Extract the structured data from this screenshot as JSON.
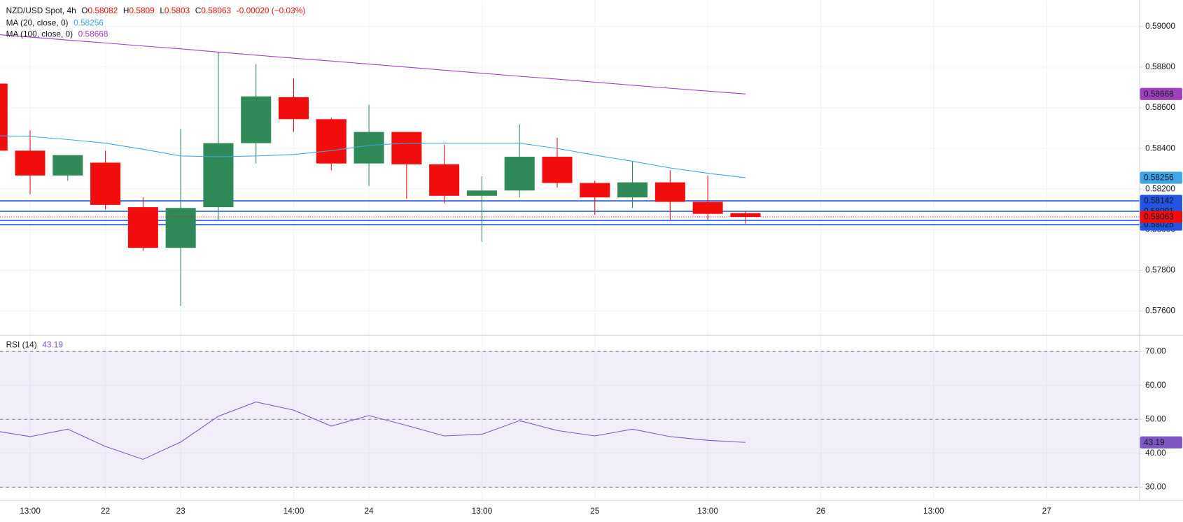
{
  "chart_data": [
    {
      "type": "candlestick",
      "title": "NZD/USD Spot, 4h",
      "ohlc_labels": [
        "O",
        "H",
        "L",
        "C"
      ],
      "change": "-0.00020 (−0.03%)",
      "x": [
        0,
        1,
        2,
        3,
        4,
        5,
        6,
        7,
        8,
        9,
        10,
        11,
        12,
        13,
        14,
        15,
        16,
        17,
        18,
        19,
        20
      ],
      "xlim": [
        0.2,
        30.46
      ],
      "xticks": [
        {
          "value": 1,
          "label": "13:00"
        },
        {
          "value": 3,
          "label": "22"
        },
        {
          "value": 5,
          "label": "23"
        },
        {
          "value": 8,
          "label": "14:00"
        },
        {
          "value": 10,
          "label": "24"
        },
        {
          "value": 13,
          "label": "13:00"
        },
        {
          "value": 16,
          "label": "25"
        },
        {
          "value": 19,
          "label": "13:00"
        },
        {
          "value": 22,
          "label": "26"
        },
        {
          "value": 25,
          "label": "13:00"
        },
        {
          "value": 28,
          "label": "27"
        }
      ],
      "open": [
        0.58719,
        0.58389,
        0.58267,
        0.5833,
        0.58111,
        0.57911,
        0.58111,
        0.58426,
        0.58652,
        0.58544,
        0.58326,
        0.58481,
        0.58322,
        0.58167,
        0.58193,
        0.58359,
        0.5823,
        0.58159,
        0.58233,
        0.58137,
        0.58082
      ],
      "high": [
        0.58719,
        0.58489,
        0.58367,
        0.58389,
        0.58159,
        0.58496,
        0.58874,
        0.58815,
        0.58744,
        0.58552,
        0.58615,
        0.58481,
        0.58419,
        0.58263,
        0.58519,
        0.58452,
        0.58241,
        0.58337,
        0.58293,
        0.58267,
        0.5809
      ],
      "low": [
        0.58389,
        0.58174,
        0.58241,
        0.581,
        0.57896,
        0.57626,
        0.58044,
        0.58326,
        0.58481,
        0.58293,
        0.58215,
        0.58152,
        0.5813,
        0.57941,
        0.58159,
        0.58207,
        0.58074,
        0.58107,
        0.58048,
        0.58048,
        0.5803
      ],
      "close": [
        0.58389,
        0.58267,
        0.58367,
        0.58122,
        0.57911,
        0.58107,
        0.58426,
        0.58656,
        0.58544,
        0.58326,
        0.58481,
        0.58322,
        0.58167,
        0.58193,
        0.58359,
        0.5823,
        0.58159,
        0.58233,
        0.58137,
        0.58078,
        0.58063
      ],
      "up_color": "#2f8a57",
      "down_color": "#f20d0d",
      "series": [
        {
          "name": "MA (20, close, 0)",
          "color": "#3ea6e6",
          "values": [
            0.58463,
            0.58459,
            0.58444,
            0.58426,
            0.58396,
            0.58363,
            0.58359,
            0.58363,
            0.5837,
            0.58389,
            0.58415,
            0.58426,
            0.58426,
            0.58426,
            0.58426,
            0.584,
            0.58367,
            0.58337,
            0.58304,
            0.58278,
            0.58256
          ]
        },
        {
          "name": "MA (100, close, 0)",
          "color": "#a23fbf",
          "values": [
            0.58962,
            0.58948,
            0.58933,
            0.58919,
            0.58904,
            0.5889,
            0.58874,
            0.58859,
            0.58844,
            0.5883,
            0.58815,
            0.588,
            0.58785,
            0.5877,
            0.58755,
            0.58741,
            0.58726,
            0.58711,
            0.58696,
            0.58682,
            0.58668
          ]
        }
      ],
      "hlines": [
        0.58142,
        0.58091,
        0.58046,
        0.58025
      ],
      "hline_color": "#1f55e0",
      "ylim": [
        0.5749,
        0.5913
      ],
      "yticks": [
        {
          "value": 0.576,
          "label": "0.57600"
        },
        {
          "value": 0.578,
          "label": "0.57800"
        },
        {
          "value": 0.58,
          "label": "0.58000"
        },
        {
          "value": 0.582,
          "label": "0.58200"
        },
        {
          "value": 0.584,
          "label": "0.58400"
        },
        {
          "value": 0.586,
          "label": "0.58600"
        },
        {
          "value": 0.588,
          "label": "0.58800"
        },
        {
          "value": 0.59,
          "label": "0.59000"
        }
      ],
      "grid": true
    },
    {
      "type": "line",
      "x": [
        0,
        1,
        2,
        3,
        4,
        5,
        6,
        7,
        8,
        9,
        10,
        11,
        12,
        13,
        14,
        15,
        16,
        17,
        18,
        19,
        20
      ],
      "xlim": [
        0.2,
        30.46
      ],
      "series": [
        {
          "name": "RSI (14)",
          "color": "#7e57c2",
          "values": [
            46.7,
            44.9,
            47.1,
            42,
            38.2,
            43.3,
            50.9,
            55.1,
            52.7,
            48,
            51.1,
            48.2,
            45.1,
            45.6,
            49.6,
            46.7,
            45.1,
            47.1,
            44.9,
            43.8,
            43.19
          ]
        }
      ],
      "band": [
        30,
        70
      ],
      "midline": 50,
      "ylim": [
        26.2,
        74.2
      ],
      "yticks": [
        {
          "value": 30,
          "label": "30.00"
        },
        {
          "value": 40,
          "label": "40.00"
        },
        {
          "value": 50,
          "label": "50.00"
        },
        {
          "value": 60,
          "label": "60.00"
        },
        {
          "value": 70,
          "label": "70.00"
        }
      ],
      "grid": true
    }
  ]
}
